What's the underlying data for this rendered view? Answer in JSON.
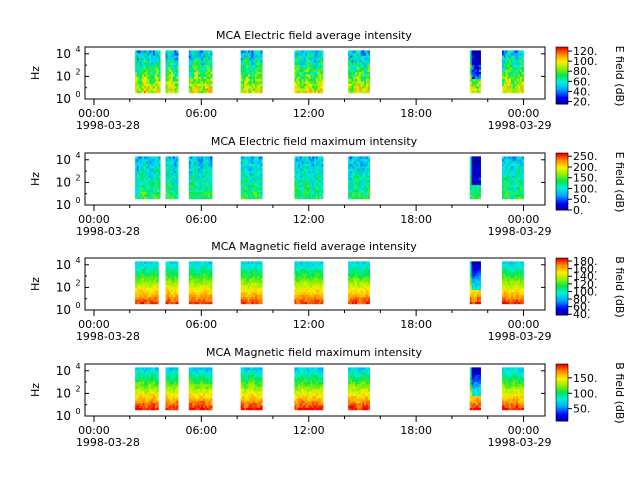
{
  "chart_data": [
    {
      "type": "heatmap",
      "title": "MCA  Electric field average intensity",
      "ylabel": "Hz",
      "ylim_log10": [
        0,
        4.6
      ],
      "y_ticks": [
        {
          "exp": 0,
          "label": "10",
          "sup": "0"
        },
        {
          "exp": 2,
          "label": "10",
          "sup": "2"
        },
        {
          "exp": 4,
          "label": "10",
          "sup": "4"
        }
      ],
      "xlim_hours": [
        -0.5,
        25.2
      ],
      "x_ticks": [
        {
          "h": 0,
          "label": "00:00"
        },
        {
          "h": 6,
          "label": "06:00"
        },
        {
          "h": 12,
          "label": "12:00"
        },
        {
          "h": 18,
          "label": "18:00"
        },
        {
          "h": 24,
          "label": "00:00"
        }
      ],
      "date_start": "1998-03-28",
      "date_end": "1998-03-29",
      "colorbar": {
        "label": "E field (dB)",
        "range": [
          15,
          128
        ],
        "ticks": [
          "120.",
          "100.",
          "80.",
          "60.",
          "40.",
          "20."
        ],
        "tick_values": [
          120,
          100,
          80,
          60,
          40,
          20
        ]
      },
      "profile": "avgE",
      "segments": [
        [
          2.3,
          3.7
        ],
        [
          4.0,
          4.7
        ],
        [
          5.3,
          6.6
        ],
        [
          8.2,
          9.4
        ],
        [
          11.2,
          12.8
        ],
        [
          14.2,
          15.4
        ],
        [
          21.0,
          21.6
        ],
        [
          22.8,
          24.0
        ]
      ]
    },
    {
      "type": "heatmap",
      "title": "MCA  Electric field maximum intensity",
      "ylabel": "Hz",
      "ylim_log10": [
        0,
        4.6
      ],
      "y_ticks": [
        {
          "exp": 0,
          "label": "10",
          "sup": "0"
        },
        {
          "exp": 2,
          "label": "10",
          "sup": "2"
        },
        {
          "exp": 4,
          "label": "10",
          "sup": "4"
        }
      ],
      "xlim_hours": [
        -0.5,
        25.2
      ],
      "x_ticks": [
        {
          "h": 0,
          "label": "00:00"
        },
        {
          "h": 6,
          "label": "06:00"
        },
        {
          "h": 12,
          "label": "12:00"
        },
        {
          "h": 18,
          "label": "18:00"
        },
        {
          "h": 24,
          "label": "00:00"
        }
      ],
      "date_start": "1998-03-28",
      "date_end": "1998-03-29",
      "colorbar": {
        "label": "E field (dB)",
        "range": [
          0,
          265
        ],
        "ticks": [
          "250.",
          "200.",
          "150.",
          "100.",
          "50.",
          "0."
        ],
        "tick_values": [
          250,
          200,
          150,
          100,
          50,
          0
        ]
      },
      "profile": "maxE",
      "segments": [
        [
          2.3,
          3.7
        ],
        [
          4.0,
          4.7
        ],
        [
          5.3,
          6.6
        ],
        [
          8.2,
          9.4
        ],
        [
          11.2,
          12.8
        ],
        [
          14.2,
          15.4
        ],
        [
          21.0,
          21.6
        ],
        [
          22.8,
          24.0
        ]
      ]
    },
    {
      "type": "heatmap",
      "title": "MCA  Magnetic field average intensity",
      "ylabel": "Hz",
      "ylim_log10": [
        0,
        4.6
      ],
      "y_ticks": [
        {
          "exp": 0,
          "label": "10",
          "sup": "0"
        },
        {
          "exp": 2,
          "label": "10",
          "sup": "2"
        },
        {
          "exp": 4,
          "label": "10",
          "sup": "4"
        }
      ],
      "xlim_hours": [
        -0.5,
        25.2
      ],
      "x_ticks": [
        {
          "h": 0,
          "label": "00:00"
        },
        {
          "h": 6,
          "label": "06:00"
        },
        {
          "h": 12,
          "label": "12:00"
        },
        {
          "h": 18,
          "label": "18:00"
        },
        {
          "h": 24,
          "label": "00:00"
        }
      ],
      "date_start": "1998-03-28",
      "date_end": "1998-03-29",
      "colorbar": {
        "label": "B field (dB)",
        "range": [
          38,
          188
        ],
        "ticks": [
          "180.",
          "160.",
          "140.",
          "120.",
          "100.",
          "80.",
          "60.",
          "40."
        ],
        "tick_values": [
          180,
          160,
          140,
          120,
          100,
          80,
          60,
          40
        ]
      },
      "profile": "avgB",
      "segments": [
        [
          2.3,
          3.6
        ],
        [
          4.0,
          4.7
        ],
        [
          5.3,
          6.6
        ],
        [
          8.2,
          9.4
        ],
        [
          11.2,
          12.8
        ],
        [
          14.2,
          15.4
        ],
        [
          21.0,
          21.6
        ],
        [
          22.8,
          24.0
        ]
      ]
    },
    {
      "type": "heatmap",
      "title": "MCA  Magnetic field maximum intensity",
      "ylabel": "Hz",
      "ylim_log10": [
        0,
        4.6
      ],
      "y_ticks": [
        {
          "exp": 0,
          "label": "10",
          "sup": "0"
        },
        {
          "exp": 2,
          "label": "10",
          "sup": "2"
        },
        {
          "exp": 4,
          "label": "10",
          "sup": "4"
        }
      ],
      "xlim_hours": [
        -0.5,
        25.2
      ],
      "x_ticks": [
        {
          "h": 0,
          "label": "00:00"
        },
        {
          "h": 6,
          "label": "06:00"
        },
        {
          "h": 12,
          "label": "12:00"
        },
        {
          "h": 18,
          "label": "18:00"
        },
        {
          "h": 24,
          "label": "00:00"
        }
      ],
      "date_start": "1998-03-28",
      "date_end": "1998-03-29",
      "colorbar": {
        "label": "B field (dB)",
        "range": [
          10,
          195
        ],
        "ticks": [
          "150.",
          "100.",
          "50."
        ],
        "tick_values": [
          150,
          100,
          50
        ]
      },
      "profile": "maxB",
      "segments": [
        [
          2.3,
          3.6
        ],
        [
          4.0,
          4.7
        ],
        [
          5.3,
          6.6
        ],
        [
          8.2,
          9.4
        ],
        [
          11.2,
          12.8
        ],
        [
          14.2,
          15.4
        ],
        [
          21.0,
          21.6
        ],
        [
          22.8,
          24.0
        ]
      ]
    }
  ]
}
